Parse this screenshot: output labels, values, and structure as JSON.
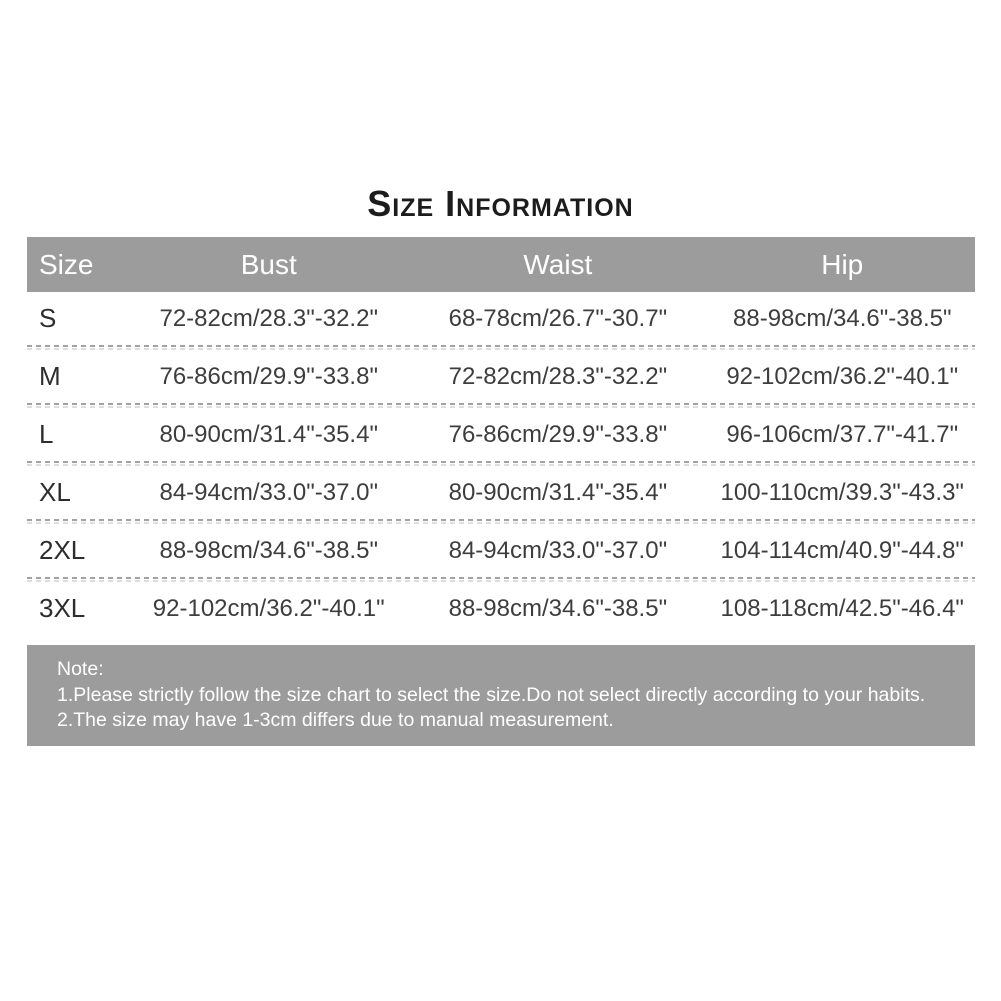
{
  "title": "Size Information",
  "colors": {
    "header_bg": "#9c9c9c",
    "note_bg": "#9c9c9c",
    "header_text": "#ffffff",
    "body_text": "#3d3d3d",
    "page_bg": "#ffffff"
  },
  "table": {
    "columns": [
      "Size",
      "Bust",
      "Waist",
      "Hip"
    ],
    "rows": [
      {
        "size": "S",
        "bust": "72-82cm/28.3\"-32.2\"",
        "waist": "68-78cm/26.7\"-30.7\"",
        "hip": "88-98cm/34.6\"-38.5\""
      },
      {
        "size": "M",
        "bust": "76-86cm/29.9\"-33.8\"",
        "waist": "72-82cm/28.3\"-32.2\"",
        "hip": "92-102cm/36.2\"-40.1\""
      },
      {
        "size": "L",
        "bust": "80-90cm/31.4\"-35.4\"",
        "waist": "76-86cm/29.9\"-33.8\"",
        "hip": "96-106cm/37.7\"-41.7\""
      },
      {
        "size": "XL",
        "bust": "84-94cm/33.0\"-37.0\"",
        "waist": "80-90cm/31.4\"-35.4\"",
        "hip": "100-110cm/39.3\"-43.3\""
      },
      {
        "size": "2XL",
        "bust": "88-98cm/34.6\"-38.5\"",
        "waist": "84-94cm/33.0\"-37.0\"",
        "hip": "104-114cm/40.9\"-44.8\""
      },
      {
        "size": "3XL",
        "bust": "92-102cm/36.2\"-40.1\"",
        "waist": "88-98cm/34.6\"-38.5\"",
        "hip": "108-118cm/42.5\"-46.4\""
      }
    ]
  },
  "note": {
    "label": "Note:",
    "lines": [
      "1.Please strictly follow the size chart to select the size.Do not select directly according to your habits.",
      "2.The size may have 1-3cm differs due to manual measurement."
    ]
  }
}
